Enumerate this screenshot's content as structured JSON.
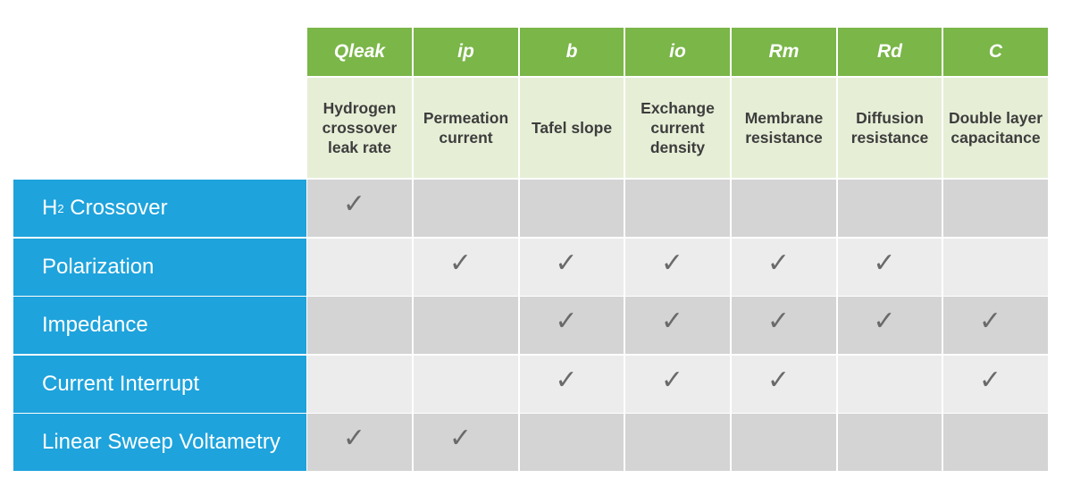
{
  "table": {
    "columns": [
      {
        "code": "Qleak",
        "description": "Hydrogen crossover leak rate"
      },
      {
        "code": "ip",
        "description": "Permeation current"
      },
      {
        "code": "b",
        "description": "Tafel slope"
      },
      {
        "code": "io",
        "description": "Exchange current density"
      },
      {
        "code": "Rm",
        "description": "Membrane resistance"
      },
      {
        "code": "Rd",
        "description": "Diffusion resistance"
      },
      {
        "code": "C",
        "description": "Double layer capacitance"
      }
    ],
    "rows": [
      {
        "label_main": "H",
        "label_sub": "2",
        "label_rest": " Crossover",
        "checks": [
          true,
          false,
          false,
          false,
          false,
          false,
          false
        ]
      },
      {
        "label": "Polarization",
        "checks": [
          false,
          true,
          true,
          true,
          true,
          true,
          false
        ]
      },
      {
        "label": "Impedance",
        "checks": [
          false,
          false,
          true,
          true,
          true,
          true,
          true
        ]
      },
      {
        "label": "Current Interrupt",
        "checks": [
          false,
          false,
          true,
          true,
          true,
          false,
          true
        ]
      },
      {
        "label": "Linear Sweep Voltametry",
        "checks": [
          true,
          true,
          false,
          false,
          false,
          false,
          false
        ]
      }
    ],
    "check_glyph": "✓",
    "check_icon": "checkmark-icon"
  },
  "colors": {
    "header_green": "#7ab648",
    "description_green": "#e6efd6",
    "row_blue": "#1ea3dc",
    "cell_dark": "#d4d4d4",
    "cell_light": "#ececec",
    "check_gray": "#6a6a6a"
  }
}
